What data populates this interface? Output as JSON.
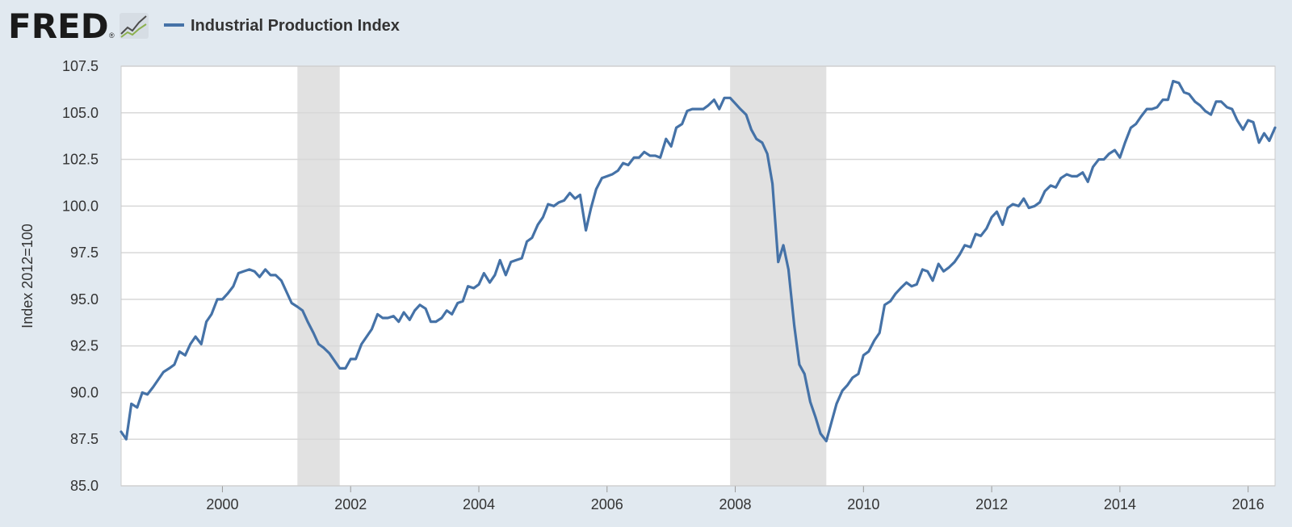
{
  "branding": {
    "logo_text": "FRED",
    "logo_mark": "®",
    "logo_icon": "line-chart-icon"
  },
  "colors": {
    "series": "#4572a7",
    "recession": "#e1e1e1",
    "background": "#e1e9f0",
    "plot_bg": "#ffffff",
    "grid": "#d8d8d8",
    "logo": "#1a1a1a"
  },
  "chart_data": {
    "type": "line",
    "title": "",
    "xlabel": "",
    "ylabel": "Index 2012=100",
    "xlim": [
      1998.42,
      2016.42
    ],
    "ylim": [
      85.0,
      107.5
    ],
    "grid": true,
    "legend_position": "top-left",
    "x_ticks": [
      "2000",
      "2002",
      "2004",
      "2006",
      "2008",
      "2010",
      "2012",
      "2014",
      "2016"
    ],
    "y_ticks": [
      "85.0",
      "87.5",
      "90.0",
      "92.5",
      "95.0",
      "97.5",
      "100.0",
      "102.5",
      "105.0",
      "107.5"
    ],
    "recessions": [
      [
        2001.17,
        2001.83
      ],
      [
        2007.92,
        2009.42
      ]
    ],
    "series": [
      {
        "name": "Industrial Production Index",
        "x": [
          1998.42,
          1998.5,
          1998.58,
          1998.67,
          1998.75,
          1998.83,
          1998.92,
          1999.0,
          1999.08,
          1999.17,
          1999.25,
          1999.33,
          1999.42,
          1999.5,
          1999.58,
          1999.67,
          1999.75,
          1999.83,
          1999.92,
          2000.0,
          2000.08,
          2000.17,
          2000.25,
          2000.33,
          2000.42,
          2000.5,
          2000.58,
          2000.67,
          2000.75,
          2000.83,
          2000.92,
          2001.0,
          2001.08,
          2001.17,
          2001.25,
          2001.33,
          2001.42,
          2001.5,
          2001.58,
          2001.67,
          2001.75,
          2001.83,
          2001.92,
          2002.0,
          2002.08,
          2002.17,
          2002.25,
          2002.33,
          2002.42,
          2002.5,
          2002.58,
          2002.67,
          2002.75,
          2002.83,
          2002.92,
          2003.0,
          2003.08,
          2003.17,
          2003.25,
          2003.33,
          2003.42,
          2003.5,
          2003.58,
          2003.67,
          2003.75,
          2003.83,
          2003.92,
          2004.0,
          2004.08,
          2004.17,
          2004.25,
          2004.33,
          2004.42,
          2004.5,
          2004.58,
          2004.67,
          2004.75,
          2004.83,
          2004.92,
          2005.0,
          2005.08,
          2005.17,
          2005.25,
          2005.33,
          2005.42,
          2005.5,
          2005.58,
          2005.67,
          2005.75,
          2005.83,
          2005.92,
          2006.0,
          2006.08,
          2006.17,
          2006.25,
          2006.33,
          2006.42,
          2006.5,
          2006.58,
          2006.67,
          2006.75,
          2006.83,
          2006.92,
          2007.0,
          2007.08,
          2007.17,
          2007.25,
          2007.33,
          2007.42,
          2007.5,
          2007.58,
          2007.67,
          2007.75,
          2007.83,
          2007.92,
          2008.0,
          2008.08,
          2008.17,
          2008.25,
          2008.33,
          2008.42,
          2008.5,
          2008.58,
          2008.67,
          2008.75,
          2008.83,
          2008.92,
          2009.0,
          2009.08,
          2009.17,
          2009.25,
          2009.33,
          2009.42,
          2009.5,
          2009.58,
          2009.67,
          2009.75,
          2009.83,
          2009.92,
          2010.0,
          2010.08,
          2010.17,
          2010.25,
          2010.33,
          2010.42,
          2010.5,
          2010.58,
          2010.67,
          2010.75,
          2010.83,
          2010.92,
          2011.0,
          2011.08,
          2011.17,
          2011.25,
          2011.33,
          2011.42,
          2011.5,
          2011.58,
          2011.67,
          2011.75,
          2011.83,
          2011.92,
          2012.0,
          2012.08,
          2012.17,
          2012.25,
          2012.33,
          2012.42,
          2012.5,
          2012.58,
          2012.67,
          2012.75,
          2012.83,
          2012.92,
          2013.0,
          2013.08,
          2013.17,
          2013.25,
          2013.33,
          2013.42,
          2013.5,
          2013.58,
          2013.67,
          2013.75,
          2013.83,
          2013.92,
          2014.0,
          2014.08,
          2014.17,
          2014.25,
          2014.33,
          2014.42,
          2014.5,
          2014.58,
          2014.67,
          2014.75,
          2014.83,
          2014.92,
          2015.0,
          2015.08,
          2015.17,
          2015.25,
          2015.33,
          2015.42,
          2015.5,
          2015.58,
          2015.67,
          2015.75,
          2015.83,
          2015.92,
          2016.0,
          2016.08,
          2016.17,
          2016.25,
          2016.33,
          2016.42
        ],
        "y": [
          87.9,
          87.5,
          89.4,
          89.2,
          90.0,
          89.9,
          90.3,
          90.7,
          91.1,
          91.3,
          91.5,
          92.2,
          92.0,
          92.6,
          93.0,
          92.6,
          93.8,
          94.2,
          95.0,
          95.0,
          95.3,
          95.7,
          96.4,
          96.5,
          96.6,
          96.5,
          96.2,
          96.6,
          96.3,
          96.3,
          96.0,
          95.4,
          94.8,
          94.6,
          94.4,
          93.8,
          93.2,
          92.6,
          92.4,
          92.1,
          91.7,
          91.3,
          91.3,
          91.8,
          91.8,
          92.6,
          93.0,
          93.4,
          94.2,
          94.0,
          94.0,
          94.1,
          93.8,
          94.3,
          93.9,
          94.4,
          94.7,
          94.5,
          93.8,
          93.8,
          94.0,
          94.4,
          94.2,
          94.8,
          94.9,
          95.7,
          95.6,
          95.8,
          96.4,
          95.9,
          96.3,
          97.1,
          96.3,
          97.0,
          97.1,
          97.2,
          98.1,
          98.3,
          99.0,
          99.4,
          100.1,
          100.0,
          100.2,
          100.3,
          100.7,
          100.4,
          100.6,
          98.7,
          99.9,
          100.9,
          101.5,
          101.6,
          101.7,
          101.9,
          102.3,
          102.2,
          102.6,
          102.6,
          102.9,
          102.7,
          102.7,
          102.6,
          103.6,
          103.2,
          104.2,
          104.4,
          105.1,
          105.2,
          105.2,
          105.2,
          105.4,
          105.7,
          105.2,
          105.8,
          105.8,
          105.5,
          105.2,
          104.9,
          104.1,
          103.6,
          103.4,
          102.8,
          101.2,
          97.0,
          97.9,
          96.6,
          93.6,
          91.5,
          91.0,
          89.5,
          88.7,
          87.8,
          87.4,
          88.4,
          89.4,
          90.1,
          90.4,
          90.8,
          91.0,
          92.0,
          92.2,
          92.8,
          93.2,
          94.7,
          94.9,
          95.3,
          95.6,
          95.9,
          95.7,
          95.8,
          96.6,
          96.5,
          96.0,
          96.9,
          96.5,
          96.7,
          97.0,
          97.4,
          97.9,
          97.8,
          98.5,
          98.4,
          98.8,
          99.4,
          99.7,
          99.0,
          99.9,
          100.1,
          100.0,
          100.4,
          99.9,
          100.0,
          100.2,
          100.8,
          101.1,
          101.0,
          101.5,
          101.7,
          101.6,
          101.6,
          101.8,
          101.3,
          102.1,
          102.5,
          102.5,
          102.8,
          103.0,
          102.6,
          103.4,
          104.2,
          104.4,
          104.8,
          105.2,
          105.2,
          105.3,
          105.7,
          105.7,
          106.7,
          106.6,
          106.1,
          106.0,
          105.6,
          105.4,
          105.1,
          104.9,
          105.6,
          105.6,
          105.3,
          105.2,
          104.6,
          104.1,
          104.6,
          104.5,
          103.4,
          103.9,
          103.5,
          104.2
        ]
      }
    ]
  }
}
